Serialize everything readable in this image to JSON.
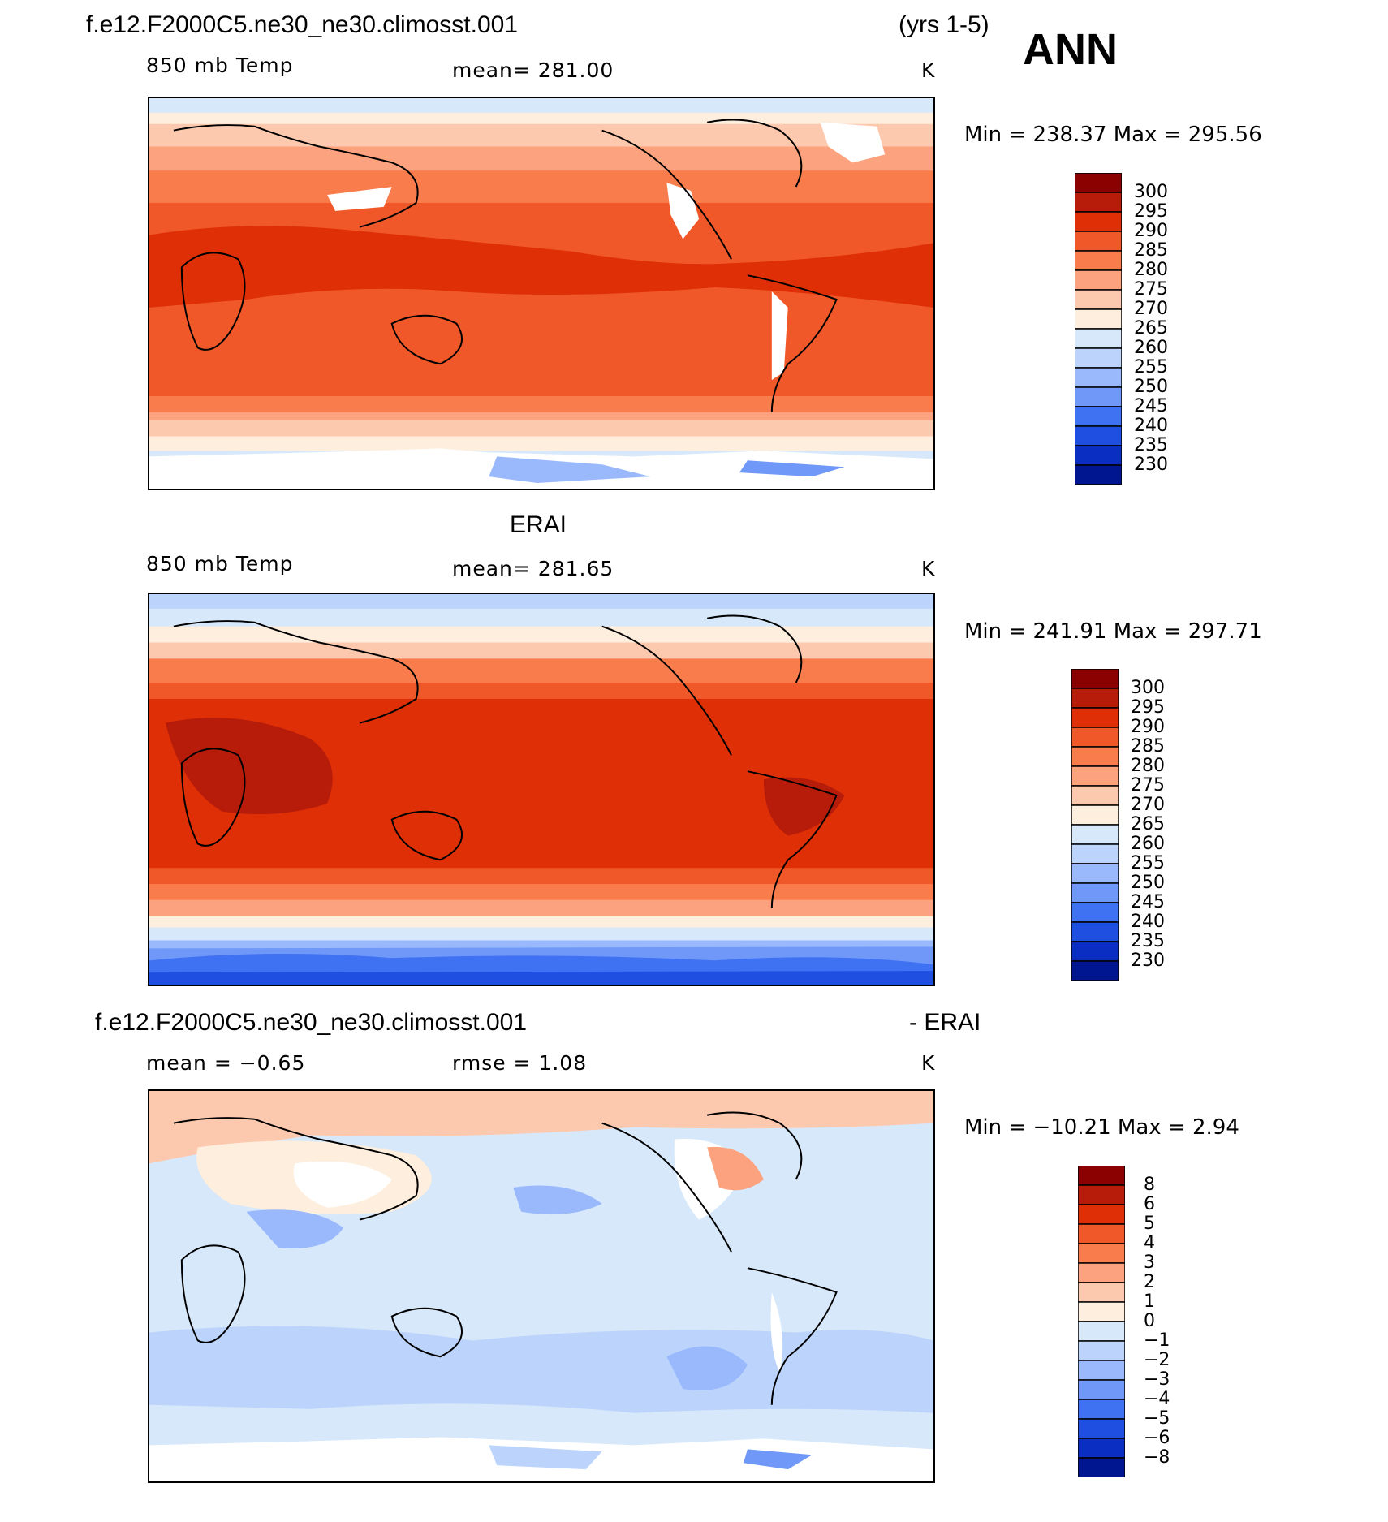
{
  "header": {
    "case_name": "f.e12.F2000C5.ne30_ne30.climosst.001",
    "years": "(yrs 1-5)",
    "season": "ANN"
  },
  "panels": [
    {
      "id": "model",
      "title": "",
      "left_label": "850 mb Temp",
      "center_label": "mean=  281.00",
      "units": "K",
      "minmax": "Min  =  238.37  Max  =  295.56",
      "colorbar_levels": [
        "300",
        "295",
        "290",
        "285",
        "280",
        "275",
        "270",
        "265",
        "260",
        "255",
        "250",
        "245",
        "240",
        "235",
        "230"
      ],
      "colorbar_colors": [
        "#8b0000",
        "#b71c0b",
        "#df2f06",
        "#f0582a",
        "#f97c4d",
        "#fca27e",
        "#fdc9ae",
        "#feeedd",
        "#d7e8fb",
        "#bcd4fb",
        "#99b9fc",
        "#6f98f8",
        "#3f71f3",
        "#1f4fe0",
        "#0a2ec2",
        "#001590"
      ]
    },
    {
      "id": "obs",
      "title": "ERAI",
      "left_label": "850 mb Temp",
      "center_label": "mean=  281.65",
      "units": "K",
      "minmax": "Min  =  241.91  Max  =  297.71",
      "colorbar_levels": [
        "300",
        "295",
        "290",
        "285",
        "280",
        "275",
        "270",
        "265",
        "260",
        "255",
        "250",
        "245",
        "240",
        "235",
        "230"
      ],
      "colorbar_colors": [
        "#8b0000",
        "#b71c0b",
        "#df2f06",
        "#f0582a",
        "#f97c4d",
        "#fca27e",
        "#fdc9ae",
        "#feeedd",
        "#d7e8fb",
        "#bcd4fb",
        "#99b9fc",
        "#6f98f8",
        "#3f71f3",
        "#1f4fe0",
        "#0a2ec2",
        "#001590"
      ]
    },
    {
      "id": "diff",
      "title_left": "f.e12.F2000C5.ne30_ne30.climosst.001",
      "title_right": "- ERAI",
      "left_label": "mean  =   −0.65",
      "center_label": "rmse  =     1.08",
      "units": "K",
      "minmax": "Min  =  −10.21  Max  =     2.94",
      "colorbar_levels": [
        "8",
        "6",
        "5",
        "4",
        "3",
        "2",
        "1",
        "0",
        "−1",
        "−2",
        "−3",
        "−4",
        "−5",
        "−6",
        "−8"
      ],
      "colorbar_colors": [
        "#8b0000",
        "#b71c0b",
        "#df2f06",
        "#f0582a",
        "#f97c4d",
        "#fca27e",
        "#fdc9ae",
        "#feeedd",
        "#d7e8fb",
        "#bcd4fb",
        "#99b9fc",
        "#6f98f8",
        "#3f71f3",
        "#1f4fe0",
        "#0a2ec2",
        "#001590"
      ]
    }
  ]
}
